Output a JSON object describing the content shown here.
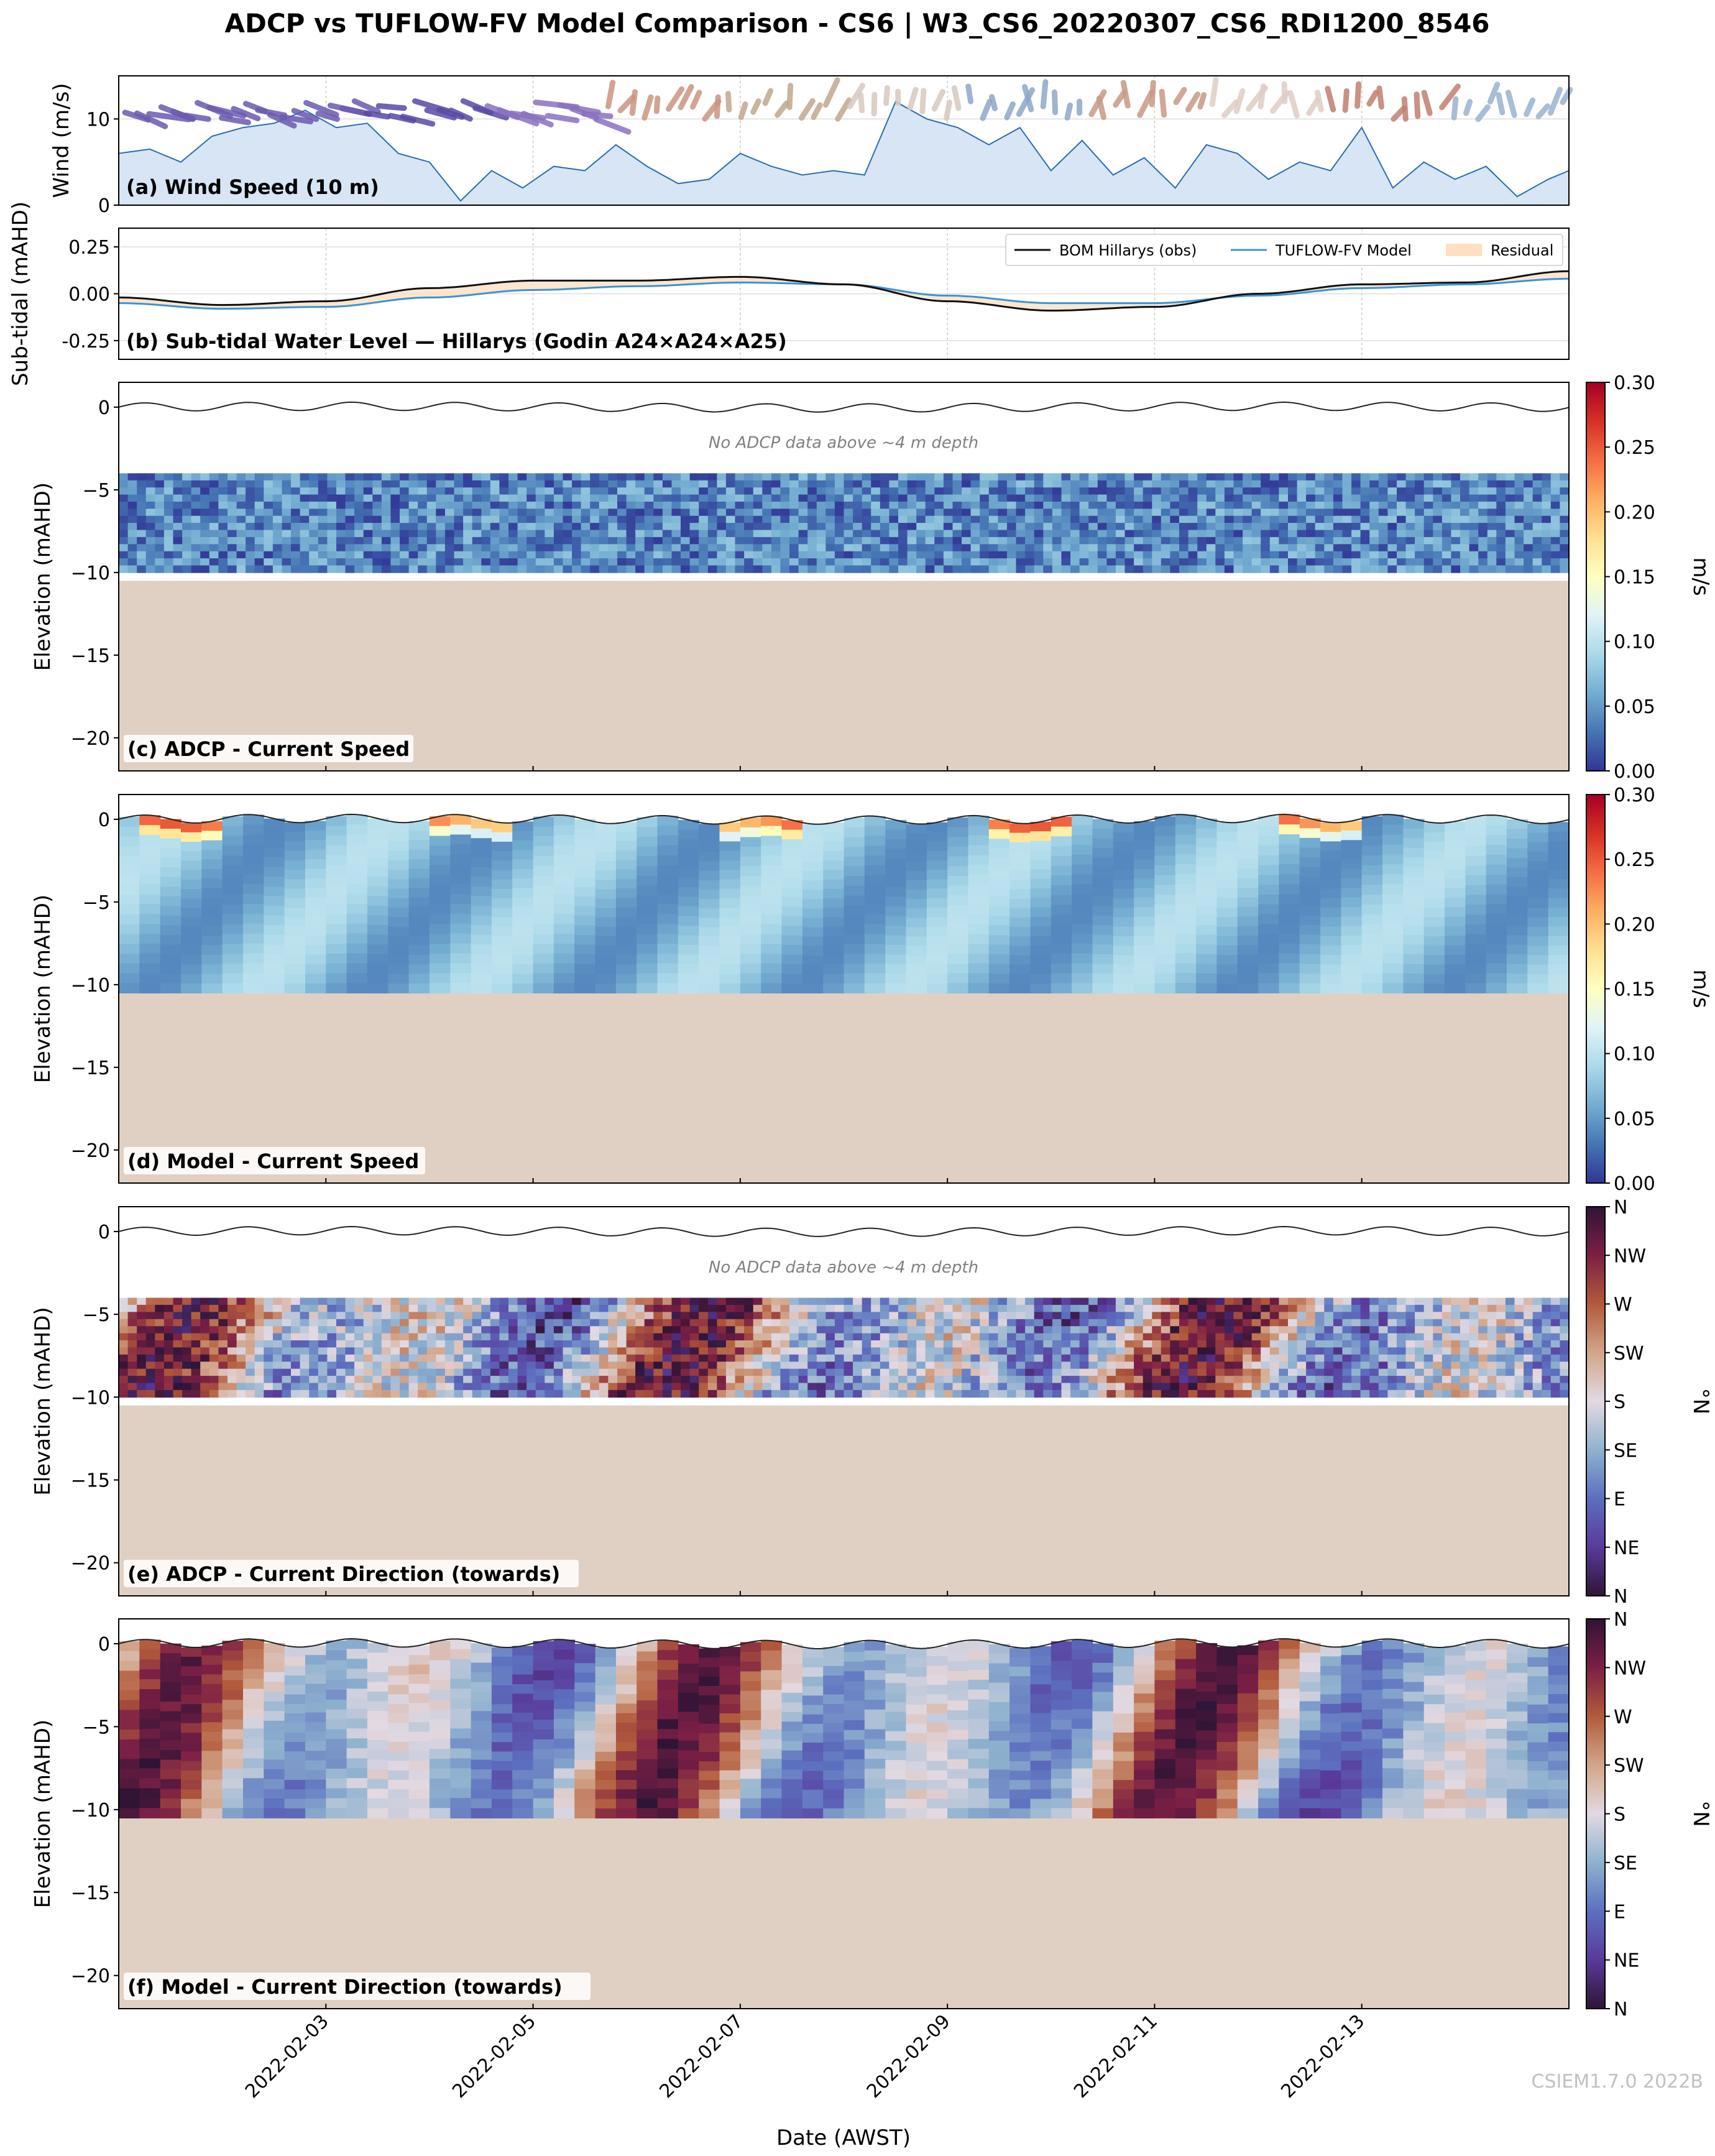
{
  "figure": {
    "title": "ADCP vs TUFLOW-FV Model Comparison - CS6 | W3_CS6_20220307_CS6_RDI1200_8546",
    "xlabel": "Date (AWST)",
    "watermark": "CSIEM1.7.0 2022B",
    "note": "No ADCP data above ~4 m depth"
  },
  "x_axis": {
    "start": "2022-02-01 00:00",
    "end": "2022-02-14 23:00",
    "ticks": [
      "2022-02-03",
      "2022-02-05",
      "2022-02-07",
      "2022-02-09",
      "2022-02-11",
      "2022-02-13"
    ]
  },
  "colorbars": {
    "speed": {
      "label": "m/s",
      "range": [
        0,
        0.3
      ],
      "ticks": [
        "0.00",
        "0.05",
        "0.10",
        "0.15",
        "0.20",
        "0.25",
        "0.30"
      ],
      "colormap": "RdYlBu_r"
    },
    "direction": {
      "label": "°N",
      "range": [
        0,
        360
      ],
      "ticks": [
        "N",
        "NE",
        "E",
        "SE",
        "S",
        "SW",
        "W",
        "NW",
        "N"
      ],
      "colormap": "twilight_shifted"
    }
  },
  "colors": {
    "seabed": "#e0d0c4",
    "wind_fill": "#d7e5f5",
    "wind_line": "#2a6db5",
    "obs_line": "#111111",
    "model_line": "#3c93d6",
    "residual": "#fde0c0"
  },
  "chart_data": [
    {
      "panel": "a",
      "type": "area",
      "label": "(a) Wind Speed (10 m)",
      "ylabel": "Wind (m/s)",
      "ylim": [
        0,
        15
      ],
      "yticks": [
        0,
        10
      ],
      "grid": true,
      "x_days": [
        0,
        0.3,
        0.6,
        0.9,
        1.2,
        1.5,
        1.8,
        2.1,
        2.4,
        2.7,
        3.0,
        3.3,
        3.6,
        3.9,
        4.2,
        4.5,
        4.8,
        5.1,
        5.4,
        5.7,
        6.0,
        6.3,
        6.6,
        6.9,
        7.2,
        7.5,
        7.8,
        8.1,
        8.4,
        8.7,
        9.0,
        9.3,
        9.6,
        9.9,
        10.2,
        10.5,
        10.8,
        11.1,
        11.4,
        11.7,
        12.0,
        12.3,
        12.6,
        12.9,
        13.2,
        13.5,
        13.8,
        14.0
      ],
      "wind_speed": [
        6.0,
        6.5,
        5.0,
        8.0,
        9.0,
        9.5,
        11.0,
        9.0,
        9.5,
        6.0,
        5.0,
        0.5,
        4.0,
        2.0,
        4.5,
        4.0,
        7.0,
        4.5,
        2.5,
        3.0,
        6.0,
        4.5,
        3.5,
        4.0,
        3.5,
        12.0,
        10.0,
        9.0,
        7.0,
        9.0,
        4.0,
        7.5,
        3.5,
        5.5,
        2.0,
        7.0,
        6.0,
        3.0,
        5.0,
        4.0,
        9.0,
        2.0,
        5.0,
        3.0,
        4.5,
        1.0,
        3.0,
        4.0
      ],
      "arrow_colors": [
        "#6b5ab0",
        "#6b5ab0",
        "#5a4aa5",
        "#8a72c0",
        "#c99582",
        "#c0a78f",
        "#d8c8c0",
        "#8ea8c8",
        "#c79a86",
        "#dfcdc6",
        "#c08070",
        "#9bb3cf"
      ]
    },
    {
      "panel": "b",
      "type": "line",
      "label": "(b) Sub-tidal Water Level — Hillarys (Godin A24×A24×A25)",
      "ylabel": "Sub-tidal (mAHD)",
      "ylim": [
        -0.35,
        0.35
      ],
      "yticks": [
        "-0.25",
        "0.00",
        "0.25"
      ],
      "legend_position": "upper-right",
      "grid": true,
      "x_days": [
        0,
        1,
        2,
        3,
        4,
        5,
        6,
        7,
        8,
        9,
        10,
        11,
        12,
        13,
        14
      ],
      "series": [
        {
          "name": "BOM Hillarys (obs)",
          "values": [
            -0.02,
            -0.06,
            -0.04,
            0.03,
            0.07,
            0.07,
            0.09,
            0.05,
            -0.04,
            -0.09,
            -0.07,
            0.0,
            0.05,
            0.06,
            0.12
          ]
        },
        {
          "name": "TUFLOW-FV Model",
          "values": [
            -0.05,
            -0.08,
            -0.07,
            -0.02,
            0.02,
            0.04,
            0.06,
            0.05,
            -0.01,
            -0.05,
            -0.05,
            -0.01,
            0.03,
            0.05,
            0.08
          ]
        },
        {
          "name": "Residual",
          "values": [
            0.03,
            0.02,
            0.03,
            0.05,
            0.05,
            0.03,
            0.03,
            0.0,
            -0.03,
            -0.04,
            -0.02,
            0.01,
            0.02,
            0.01,
            0.04
          ]
        }
      ]
    },
    {
      "panel": "c",
      "type": "heatmap",
      "label": "(c) ADCP - Current Speed",
      "ylabel": "Elevation (mAHD)",
      "ylim": [
        -22,
        1.5
      ],
      "yticks": [
        0,
        -5,
        -10,
        -15,
        -20
      ],
      "colorbar": "speed",
      "data_top": -4,
      "data_bottom": -10,
      "seabed": -10.5,
      "typical_value": 0.04
    },
    {
      "panel": "d",
      "type": "heatmap",
      "label": "(d) Model - Current Speed",
      "ylabel": "Elevation (mAHD)",
      "ylim": [
        -22,
        1.5
      ],
      "yticks": [
        0,
        -5,
        -10,
        -15,
        -20
      ],
      "colorbar": "speed",
      "data_top": 0,
      "data_bottom": -10.5,
      "seabed": -10.5,
      "typical_value": 0.07
    },
    {
      "panel": "e",
      "type": "heatmap",
      "label": "(e) ADCP - Current Direction (towards)",
      "ylabel": "Elevation (mAHD)",
      "ylim": [
        -22,
        1.5
      ],
      "yticks": [
        0,
        -5,
        -10,
        -15,
        -20
      ],
      "colorbar": "direction",
      "data_top": -4,
      "data_bottom": -10,
      "seabed": -10.5
    },
    {
      "panel": "f",
      "type": "heatmap",
      "label": "(f) Model - Current Direction (towards)",
      "ylabel": "Elevation (mAHD)",
      "ylim": [
        -22,
        1.5
      ],
      "yticks": [
        0,
        -5,
        -10,
        -15,
        -20
      ],
      "colorbar": "direction",
      "data_top": 0,
      "data_bottom": -10.5,
      "seabed": -10.5
    }
  ]
}
